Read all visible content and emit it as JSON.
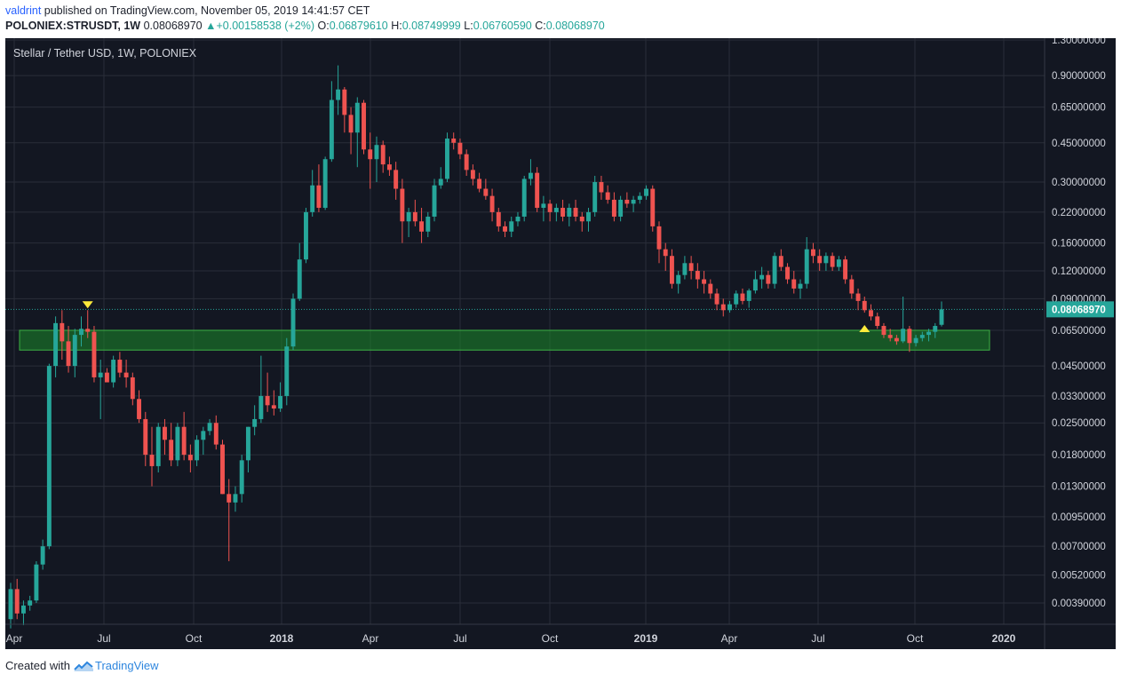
{
  "header": {
    "user": "valdrint",
    "published_text": "published on TradingView.com, November 05, 2019 14:41:57 CET",
    "symbol": "POLONIEX:STRUSDT, 1W",
    "price": "0.08068970",
    "change": "+0.00158538 (+2%)",
    "o_label": "O:",
    "o_value": "0.06879610",
    "h_label": "H:",
    "h_value": "0.08749999",
    "l_label": "L:",
    "l_value": "0.06760590",
    "c_label": "C:",
    "c_value": "0.08068970"
  },
  "footer": {
    "created_with": "Created with",
    "brand": "TradingView"
  },
  "colors": {
    "background": "#131722",
    "up": "#26a69a",
    "down": "#ef5350",
    "zone": "#1b8a2a",
    "marker": "#ffeb3b",
    "grid": "#2a2e39",
    "price_label": "#26a69a"
  },
  "chart_data": {
    "type": "candlestick",
    "title": "Stellar / Tether USD, 1W, POLONIEX",
    "y_scale": "log",
    "y_ticks": [
      "1.30000000",
      "0.90000000",
      "0.65000000",
      "0.45000000",
      "0.30000000",
      "0.22000000",
      "0.16000000",
      "0.12000000",
      "0.09000000",
      "0.06500000",
      "0.04500000",
      "0.03300000",
      "0.02500000",
      "0.01800000",
      "0.01300000",
      "0.00950000",
      "0.00700000",
      "0.00520000",
      "0.00390000"
    ],
    "x_ticks": [
      {
        "label": "Apr",
        "bold": false
      },
      {
        "label": "Jul",
        "bold": false
      },
      {
        "label": "Oct",
        "bold": false
      },
      {
        "label": "2018",
        "bold": true
      },
      {
        "label": "Apr",
        "bold": false
      },
      {
        "label": "Jul",
        "bold": false
      },
      {
        "label": "Oct",
        "bold": false
      },
      {
        "label": "2019",
        "bold": true
      },
      {
        "label": "Apr",
        "bold": false
      },
      {
        "label": "Jul",
        "bold": false
      },
      {
        "label": "Oct",
        "bold": false
      },
      {
        "label": "2020",
        "bold": true
      }
    ],
    "current_price_label": "0.08068970",
    "support_zone": {
      "low": 0.053,
      "high": 0.065
    },
    "markers": [
      {
        "type": "down-triangle",
        "candle_index": 12
      },
      {
        "type": "up-triangle",
        "candle_index": 133
      }
    ],
    "candles_ohlc": [
      [
        0.0033,
        0.0048,
        0.003,
        0.0045
      ],
      [
        0.0045,
        0.005,
        0.0033,
        0.0035
      ],
      [
        0.0035,
        0.004,
        0.0031,
        0.0038
      ],
      [
        0.0038,
        0.0042,
        0.0036,
        0.004
      ],
      [
        0.004,
        0.006,
        0.0039,
        0.0058
      ],
      [
        0.0058,
        0.0075,
        0.0055,
        0.007
      ],
      [
        0.007,
        0.046,
        0.0068,
        0.045
      ],
      [
        0.045,
        0.075,
        0.04,
        0.07
      ],
      [
        0.07,
        0.08,
        0.048,
        0.058
      ],
      [
        0.058,
        0.068,
        0.042,
        0.045
      ],
      [
        0.045,
        0.066,
        0.04,
        0.062
      ],
      [
        0.062,
        0.075,
        0.055,
        0.066
      ],
      [
        0.066,
        0.08,
        0.06,
        0.064
      ],
      [
        0.064,
        0.068,
        0.038,
        0.04
      ],
      [
        0.04,
        0.048,
        0.026,
        0.042
      ],
      [
        0.042,
        0.044,
        0.038,
        0.038
      ],
      [
        0.038,
        0.05,
        0.036,
        0.048
      ],
      [
        0.048,
        0.052,
        0.04,
        0.042
      ],
      [
        0.042,
        0.048,
        0.036,
        0.04
      ],
      [
        0.04,
        0.042,
        0.03,
        0.032
      ],
      [
        0.032,
        0.035,
        0.025,
        0.026
      ],
      [
        0.026,
        0.028,
        0.016,
        0.018
      ],
      [
        0.018,
        0.024,
        0.013,
        0.016
      ],
      [
        0.016,
        0.025,
        0.015,
        0.024
      ],
      [
        0.024,
        0.026,
        0.018,
        0.021
      ],
      [
        0.021,
        0.025,
        0.016,
        0.017
      ],
      [
        0.017,
        0.025,
        0.016,
        0.024
      ],
      [
        0.024,
        0.028,
        0.017,
        0.018
      ],
      [
        0.018,
        0.02,
        0.015,
        0.017
      ],
      [
        0.017,
        0.022,
        0.016,
        0.021
      ],
      [
        0.021,
        0.024,
        0.018,
        0.023
      ],
      [
        0.023,
        0.026,
        0.022,
        0.025
      ],
      [
        0.025,
        0.027,
        0.019,
        0.02
      ],
      [
        0.02,
        0.021,
        0.012,
        0.012
      ],
      [
        0.012,
        0.014,
        0.006,
        0.011
      ],
      [
        0.011,
        0.013,
        0.01,
        0.012
      ],
      [
        0.012,
        0.018,
        0.011,
        0.017
      ],
      [
        0.017,
        0.024,
        0.015,
        0.024
      ],
      [
        0.024,
        0.03,
        0.022,
        0.026
      ],
      [
        0.026,
        0.05,
        0.025,
        0.033
      ],
      [
        0.033,
        0.042,
        0.028,
        0.03
      ],
      [
        0.03,
        0.035,
        0.027,
        0.029
      ],
      [
        0.029,
        0.038,
        0.028,
        0.033
      ],
      [
        0.033,
        0.06,
        0.03,
        0.055
      ],
      [
        0.055,
        0.095,
        0.053,
        0.09
      ],
      [
        0.09,
        0.16,
        0.088,
        0.135
      ],
      [
        0.135,
        0.23,
        0.13,
        0.22
      ],
      [
        0.22,
        0.34,
        0.21,
        0.29
      ],
      [
        0.29,
        0.36,
        0.22,
        0.23
      ],
      [
        0.23,
        0.39,
        0.225,
        0.38
      ],
      [
        0.38,
        0.85,
        0.37,
        0.7
      ],
      [
        0.7,
        1.0,
        0.6,
        0.78
      ],
      [
        0.78,
        0.8,
        0.5,
        0.6
      ],
      [
        0.6,
        0.65,
        0.4,
        0.5
      ],
      [
        0.5,
        0.72,
        0.35,
        0.68
      ],
      [
        0.68,
        0.7,
        0.4,
        0.42
      ],
      [
        0.42,
        0.5,
        0.28,
        0.38
      ],
      [
        0.38,
        0.48,
        0.3,
        0.44
      ],
      [
        0.44,
        0.46,
        0.33,
        0.36
      ],
      [
        0.36,
        0.39,
        0.32,
        0.34
      ],
      [
        0.34,
        0.37,
        0.25,
        0.28
      ],
      [
        0.28,
        0.31,
        0.16,
        0.2
      ],
      [
        0.2,
        0.23,
        0.17,
        0.22
      ],
      [
        0.22,
        0.25,
        0.19,
        0.2
      ],
      [
        0.2,
        0.23,
        0.16,
        0.18
      ],
      [
        0.18,
        0.22,
        0.17,
        0.21
      ],
      [
        0.21,
        0.31,
        0.2,
        0.29
      ],
      [
        0.29,
        0.35,
        0.28,
        0.31
      ],
      [
        0.31,
        0.5,
        0.3,
        0.47
      ],
      [
        0.47,
        0.5,
        0.42,
        0.45
      ],
      [
        0.45,
        0.47,
        0.38,
        0.4
      ],
      [
        0.4,
        0.42,
        0.32,
        0.34
      ],
      [
        0.34,
        0.36,
        0.29,
        0.31
      ],
      [
        0.31,
        0.33,
        0.27,
        0.28
      ],
      [
        0.28,
        0.31,
        0.25,
        0.26
      ],
      [
        0.26,
        0.28,
        0.2,
        0.22
      ],
      [
        0.22,
        0.23,
        0.18,
        0.19
      ],
      [
        0.19,
        0.2,
        0.17,
        0.18
      ],
      [
        0.18,
        0.21,
        0.17,
        0.2
      ],
      [
        0.2,
        0.22,
        0.19,
        0.21
      ],
      [
        0.21,
        0.32,
        0.2,
        0.31
      ],
      [
        0.31,
        0.38,
        0.29,
        0.33
      ],
      [
        0.33,
        0.35,
        0.22,
        0.23
      ],
      [
        0.23,
        0.26,
        0.2,
        0.24
      ],
      [
        0.24,
        0.25,
        0.2,
        0.22
      ],
      [
        0.22,
        0.24,
        0.2,
        0.23
      ],
      [
        0.23,
        0.25,
        0.2,
        0.21
      ],
      [
        0.21,
        0.24,
        0.19,
        0.23
      ],
      [
        0.23,
        0.25,
        0.2,
        0.21
      ],
      [
        0.21,
        0.22,
        0.18,
        0.2
      ],
      [
        0.2,
        0.23,
        0.18,
        0.22
      ],
      [
        0.22,
        0.32,
        0.21,
        0.3
      ],
      [
        0.3,
        0.32,
        0.25,
        0.27
      ],
      [
        0.27,
        0.29,
        0.24,
        0.25
      ],
      [
        0.25,
        0.27,
        0.2,
        0.21
      ],
      [
        0.21,
        0.26,
        0.2,
        0.25
      ],
      [
        0.25,
        0.27,
        0.23,
        0.24
      ],
      [
        0.24,
        0.26,
        0.22,
        0.25
      ],
      [
        0.25,
        0.27,
        0.24,
        0.26
      ],
      [
        0.26,
        0.29,
        0.25,
        0.28
      ],
      [
        0.28,
        0.29,
        0.18,
        0.19
      ],
      [
        0.19,
        0.2,
        0.13,
        0.15
      ],
      [
        0.15,
        0.16,
        0.12,
        0.14
      ],
      [
        0.14,
        0.15,
        0.1,
        0.105
      ],
      [
        0.105,
        0.12,
        0.095,
        0.115
      ],
      [
        0.115,
        0.14,
        0.11,
        0.13
      ],
      [
        0.13,
        0.14,
        0.11,
        0.12
      ],
      [
        0.12,
        0.13,
        0.1,
        0.11
      ],
      [
        0.11,
        0.12,
        0.095,
        0.105
      ],
      [
        0.105,
        0.11,
        0.09,
        0.095
      ],
      [
        0.095,
        0.1,
        0.08,
        0.085
      ],
      [
        0.085,
        0.09,
        0.075,
        0.08
      ],
      [
        0.08,
        0.088,
        0.078,
        0.085
      ],
      [
        0.085,
        0.098,
        0.082,
        0.095
      ],
      [
        0.095,
        0.1,
        0.085,
        0.088
      ],
      [
        0.088,
        0.1,
        0.082,
        0.098
      ],
      [
        0.098,
        0.12,
        0.095,
        0.11
      ],
      [
        0.11,
        0.125,
        0.1,
        0.115
      ],
      [
        0.115,
        0.12,
        0.1,
        0.105
      ],
      [
        0.105,
        0.145,
        0.1,
        0.14
      ],
      [
        0.14,
        0.15,
        0.12,
        0.125
      ],
      [
        0.125,
        0.13,
        0.105,
        0.11
      ],
      [
        0.11,
        0.12,
        0.095,
        0.1
      ],
      [
        0.1,
        0.11,
        0.09,
        0.105
      ],
      [
        0.105,
        0.17,
        0.1,
        0.15
      ],
      [
        0.15,
        0.16,
        0.13,
        0.14
      ],
      [
        0.14,
        0.15,
        0.12,
        0.13
      ],
      [
        0.13,
        0.145,
        0.12,
        0.14
      ],
      [
        0.14,
        0.145,
        0.12,
        0.125
      ],
      [
        0.125,
        0.14,
        0.12,
        0.135
      ],
      [
        0.135,
        0.14,
        0.105,
        0.11
      ],
      [
        0.11,
        0.115,
        0.09,
        0.095
      ],
      [
        0.095,
        0.1,
        0.08,
        0.088
      ],
      [
        0.088,
        0.092,
        0.078,
        0.08
      ],
      [
        0.08,
        0.085,
        0.072,
        0.075
      ],
      [
        0.075,
        0.078,
        0.066,
        0.068
      ],
      [
        0.068,
        0.07,
        0.06,
        0.062
      ],
      [
        0.062,
        0.066,
        0.058,
        0.06
      ],
      [
        0.06,
        0.062,
        0.056,
        0.058
      ],
      [
        0.058,
        0.092,
        0.057,
        0.066
      ],
      [
        0.066,
        0.068,
        0.052,
        0.057
      ],
      [
        0.057,
        0.062,
        0.055,
        0.06
      ],
      [
        0.06,
        0.064,
        0.058,
        0.062
      ],
      [
        0.062,
        0.066,
        0.058,
        0.064
      ],
      [
        0.064,
        0.07,
        0.06,
        0.068
      ],
      [
        0.0688,
        0.0875,
        0.0676,
        0.0807
      ]
    ]
  }
}
